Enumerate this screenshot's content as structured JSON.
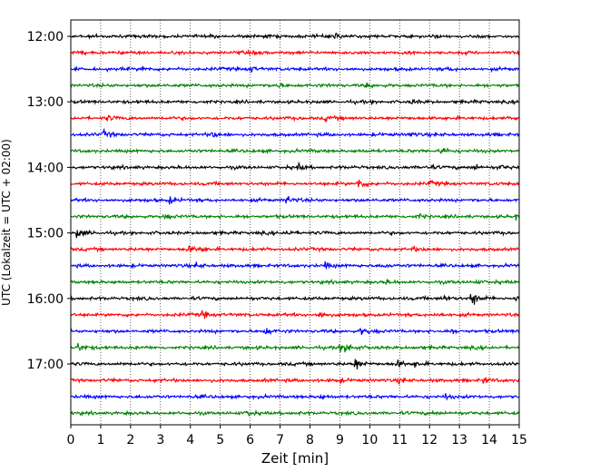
{
  "chart_data": {
    "type": "line",
    "xlabel": "Zeit  [min]",
    "ylabel": "UTC (Lokalzeit = UTC + 02:00)",
    "xlim": [
      0,
      15
    ],
    "xticks": [
      "0",
      "1",
      "2",
      "3",
      "4",
      "5",
      "6",
      "7",
      "8",
      "9",
      "10",
      "11",
      "12",
      "13",
      "14",
      "15"
    ],
    "yticks": [
      "12:00",
      "13:00",
      "14:00",
      "15:00",
      "16:00",
      "17:00"
    ],
    "grid": "vertical dotted",
    "trace_colors": [
      "#000000",
      "#ff0000",
      "#0000ff",
      "#008000"
    ],
    "series": [
      {
        "start": "12:00",
        "color": "#000000",
        "events": [
          [
            8.8,
            0.8
          ]
        ]
      },
      {
        "start": "12:15",
        "color": "#ff0000",
        "events": [
          [
            6.2,
            0.3
          ]
        ]
      },
      {
        "start": "12:30",
        "color": "#0000ff",
        "events": [
          [
            2.4,
            0.5
          ],
          [
            6.0,
            0.6
          ],
          [
            12.5,
            0.3
          ]
        ]
      },
      {
        "start": "12:45",
        "color": "#008000",
        "events": [
          [
            6.9,
            0.4
          ],
          [
            9.9,
            0.4
          ]
        ]
      },
      {
        "start": "13:00",
        "color": "#000000",
        "events": [
          [
            11.4,
            0.35
          ]
        ]
      },
      {
        "start": "13:15",
        "color": "#ff0000",
        "events": [
          [
            1.2,
            0.5
          ],
          [
            8.5,
            0.5
          ],
          [
            14.9,
            0.4
          ]
        ]
      },
      {
        "start": "13:30",
        "color": "#0000ff",
        "events": [
          [
            1.1,
            0.7
          ],
          [
            4.7,
            0.6
          ],
          [
            11.3,
            0.6
          ]
        ]
      },
      {
        "start": "13:45",
        "color": "#008000",
        "events": [
          [
            12.4,
            0.9
          ]
        ]
      },
      {
        "start": "14:00",
        "color": "#000000",
        "events": [
          [
            7.6,
            0.6
          ],
          [
            11.9,
            0.6
          ],
          [
            13.5,
            0.6
          ],
          [
            14.3,
            0.5
          ]
        ]
      },
      {
        "start": "14:15",
        "color": "#ff0000",
        "events": [
          [
            9.6,
            1.4
          ],
          [
            12.0,
            0.4
          ]
        ]
      },
      {
        "start": "14:30",
        "color": "#0000ff",
        "events": [
          [
            3.3,
            0.7
          ],
          [
            7.2,
            1.0
          ]
        ]
      },
      {
        "start": "14:45",
        "color": "#008000",
        "events": [
          [
            3.1,
            0.4
          ],
          [
            11.6,
            0.4
          ],
          [
            14.9,
            0.5
          ]
        ]
      },
      {
        "start": "15:00",
        "color": "#000000",
        "events": [
          [
            0.2,
            1.1
          ],
          [
            7.2,
            0.7
          ]
        ]
      },
      {
        "start": "15:15",
        "color": "#ff0000",
        "events": [
          [
            3.9,
            0.6
          ],
          [
            4.3,
            0.5
          ],
          [
            11.4,
            0.5
          ]
        ]
      },
      {
        "start": "15:30",
        "color": "#0000ff",
        "events": [
          [
            4.2,
            0.6
          ],
          [
            8.5,
            0.6
          ],
          [
            10.4,
            0.5
          ]
        ]
      },
      {
        "start": "15:45",
        "color": "#008000",
        "events": [
          [
            10.5,
            0.4
          ],
          [
            13.5,
            0.3
          ]
        ]
      },
      {
        "start": "16:00",
        "color": "#000000",
        "events": [
          [
            12.5,
            0.6
          ],
          [
            13.4,
            1.7
          ],
          [
            14.9,
            0.6
          ]
        ]
      },
      {
        "start": "16:15",
        "color": "#ff0000",
        "events": [
          [
            4.4,
            0.8
          ],
          [
            8.3,
            0.8
          ],
          [
            12.2,
            0.4
          ]
        ]
      },
      {
        "start": "16:30",
        "color": "#0000ff",
        "events": [
          [
            6.5,
            0.8
          ],
          [
            9.7,
            0.8
          ],
          [
            12.7,
            0.4
          ]
        ]
      },
      {
        "start": "16:45",
        "color": "#008000",
        "events": [
          [
            0.2,
            0.9
          ],
          [
            9.2,
            1.2
          ],
          [
            8.9,
            0.8
          ]
        ]
      },
      {
        "start": "17:00",
        "color": "#000000",
        "events": [
          [
            9.5,
            1.6
          ],
          [
            10.9,
            0.7
          ],
          [
            11.5,
            0.5
          ]
        ]
      },
      {
        "start": "17:15",
        "color": "#ff0000",
        "events": [
          [
            11.0,
            0.7
          ],
          [
            8.9,
            0.4
          ],
          [
            13.8,
            0.5
          ]
        ]
      },
      {
        "start": "17:30",
        "color": "#0000ff",
        "events": [
          [
            12.5,
            0.6
          ],
          [
            8.3,
            0.4
          ]
        ]
      },
      {
        "start": "17:45",
        "color": "#008000",
        "events": [
          [
            5.9,
            0.5
          ],
          [
            12.1,
            0.3
          ]
        ]
      }
    ]
  }
}
